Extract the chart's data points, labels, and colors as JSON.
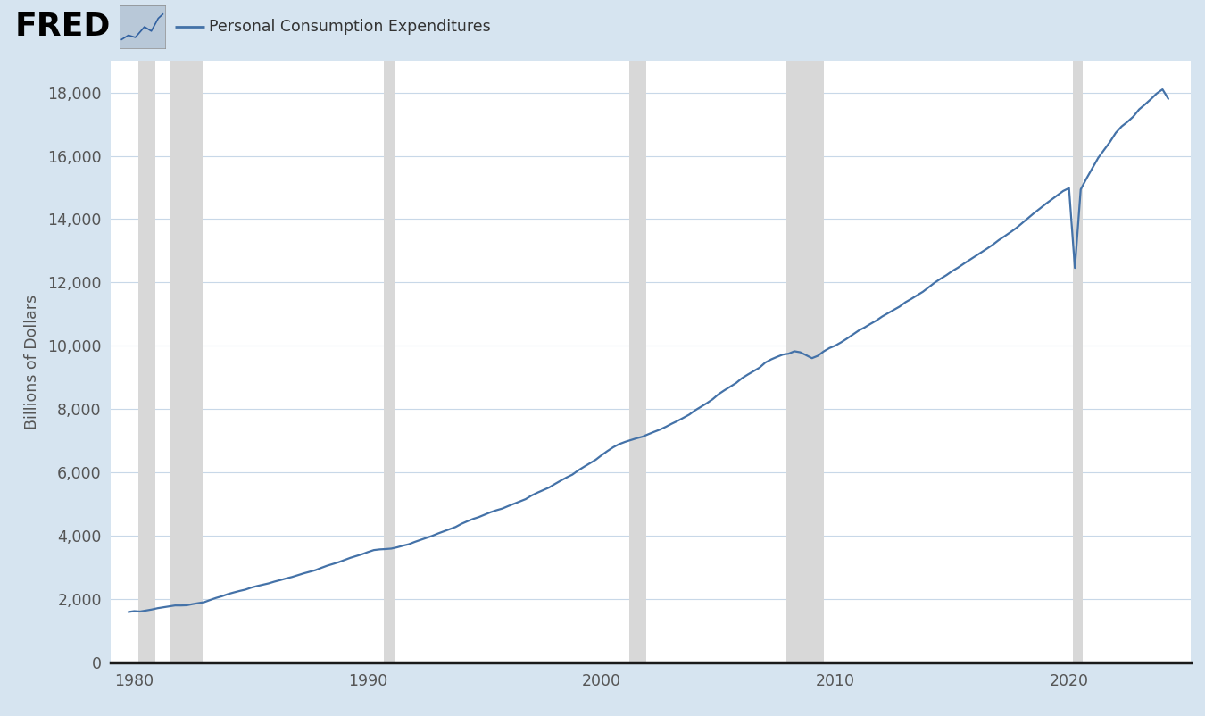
{
  "title": "Personal Consumption Expenditures",
  "ylabel": "Billions of Dollars",
  "line_color": "#4472a8",
  "line_width": 1.6,
  "background_color": "#d6e4f0",
  "plot_bg_color": "#ffffff",
  "recession_color": "#d8d8d8",
  "recessions": [
    [
      1980.17,
      1980.92
    ],
    [
      1981.5,
      1982.92
    ],
    [
      1990.67,
      1991.17
    ],
    [
      2001.17,
      2001.92
    ],
    [
      2007.92,
      2009.5
    ],
    [
      2020.17,
      2020.58
    ]
  ],
  "xmin": 1979.0,
  "xmax": 2025.2,
  "ymin": 0,
  "ymax": 19000,
  "yticks": [
    0,
    2000,
    4000,
    6000,
    8000,
    10000,
    12000,
    14000,
    16000,
    18000
  ],
  "xticks": [
    1980,
    1990,
    2000,
    2010,
    2020
  ],
  "fred_text_color": "#000000",
  "axis_color": "#1a1a1a",
  "grid_color": "#c8d8e8",
  "tick_label_color": "#555555",
  "header_bg": "#d6e4f0",
  "pce_data": {
    "years": [
      1979.75,
      1980.0,
      1980.25,
      1980.5,
      1980.75,
      1981.0,
      1981.25,
      1981.5,
      1981.75,
      1982.0,
      1982.25,
      1982.5,
      1982.75,
      1983.0,
      1983.25,
      1983.5,
      1983.75,
      1984.0,
      1984.25,
      1984.5,
      1984.75,
      1985.0,
      1985.25,
      1985.5,
      1985.75,
      1986.0,
      1986.25,
      1986.5,
      1986.75,
      1987.0,
      1987.25,
      1987.5,
      1987.75,
      1988.0,
      1988.25,
      1988.5,
      1988.75,
      1989.0,
      1989.25,
      1989.5,
      1989.75,
      1990.0,
      1990.25,
      1990.5,
      1990.75,
      1991.0,
      1991.25,
      1991.5,
      1991.75,
      1992.0,
      1992.25,
      1992.5,
      1992.75,
      1993.0,
      1993.25,
      1993.5,
      1993.75,
      1994.0,
      1994.25,
      1994.5,
      1994.75,
      1995.0,
      1995.25,
      1995.5,
      1995.75,
      1996.0,
      1996.25,
      1996.5,
      1996.75,
      1997.0,
      1997.25,
      1997.5,
      1997.75,
      1998.0,
      1998.25,
      1998.5,
      1998.75,
      1999.0,
      1999.25,
      1999.5,
      1999.75,
      2000.0,
      2000.25,
      2000.5,
      2000.75,
      2001.0,
      2001.25,
      2001.5,
      2001.75,
      2002.0,
      2002.25,
      2002.5,
      2002.75,
      2003.0,
      2003.25,
      2003.5,
      2003.75,
      2004.0,
      2004.25,
      2004.5,
      2004.75,
      2005.0,
      2005.25,
      2005.5,
      2005.75,
      2006.0,
      2006.25,
      2006.5,
      2006.75,
      2007.0,
      2007.25,
      2007.5,
      2007.75,
      2008.0,
      2008.25,
      2008.5,
      2008.75,
      2009.0,
      2009.25,
      2009.5,
      2009.75,
      2010.0,
      2010.25,
      2010.5,
      2010.75,
      2011.0,
      2011.25,
      2011.5,
      2011.75,
      2012.0,
      2012.25,
      2012.5,
      2012.75,
      2013.0,
      2013.25,
      2013.5,
      2013.75,
      2014.0,
      2014.25,
      2014.5,
      2014.75,
      2015.0,
      2015.25,
      2015.5,
      2015.75,
      2016.0,
      2016.25,
      2016.5,
      2016.75,
      2017.0,
      2017.25,
      2017.5,
      2017.75,
      2018.0,
      2018.25,
      2018.5,
      2018.75,
      2019.0,
      2019.25,
      2019.5,
      2019.75,
      2020.0,
      2020.25,
      2020.5,
      2020.75,
      2021.0,
      2021.25,
      2021.5,
      2021.75,
      2022.0,
      2022.25,
      2022.5,
      2022.75,
      2023.0,
      2023.25,
      2023.5,
      2023.75,
      2024.0,
      2024.25
    ],
    "values": [
      1590,
      1617,
      1604,
      1635,
      1668,
      1710,
      1738,
      1769,
      1797,
      1796,
      1803,
      1840,
      1871,
      1902,
      1970,
      2034,
      2087,
      2153,
      2205,
      2253,
      2295,
      2358,
      2408,
      2451,
      2493,
      2549,
      2597,
      2649,
      2695,
      2754,
      2810,
      2859,
      2910,
      2983,
      3051,
      3108,
      3164,
      3234,
      3302,
      3358,
      3415,
      3484,
      3545,
      3567,
      3578,
      3593,
      3634,
      3685,
      3730,
      3803,
      3867,
      3931,
      3994,
      4070,
      4138,
      4207,
      4275,
      4375,
      4455,
      4530,
      4590,
      4666,
      4742,
      4804,
      4857,
      4935,
      5009,
      5083,
      5155,
      5269,
      5359,
      5441,
      5522,
      5633,
      5739,
      5839,
      5930,
      6063,
      6178,
      6288,
      6400,
      6543,
      6675,
      6796,
      6893,
      6963,
      7022,
      7079,
      7128,
      7207,
      7282,
      7353,
      7440,
      7537,
      7626,
      7724,
      7826,
      7960,
      8071,
      8185,
      8310,
      8468,
      8591,
      8706,
      8821,
      8972,
      9088,
      9197,
      9305,
      9467,
      9567,
      9647,
      9720,
      9749,
      9826,
      9794,
      9703,
      9607,
      9682,
      9821,
      9929,
      10005,
      10110,
      10228,
      10354,
      10480,
      10577,
      10690,
      10795,
      10922,
      11026,
      11133,
      11238,
      11375,
      11481,
      11594,
      11708,
      11849,
      11993,
      12115,
      12229,
      12358,
      12468,
      12594,
      12714,
      12836,
      12952,
      13073,
      13199,
      13341,
      13463,
      13590,
      13723,
      13880,
      14033,
      14189,
      14332,
      14480,
      14617,
      14756,
      14889,
      14979,
      12459,
      14938,
      15286,
      15613,
      15937,
      16187,
      16437,
      16726,
      16927,
      17073,
      17239,
      17467,
      17622,
      17789,
      17968,
      18100,
      17800
    ]
  }
}
